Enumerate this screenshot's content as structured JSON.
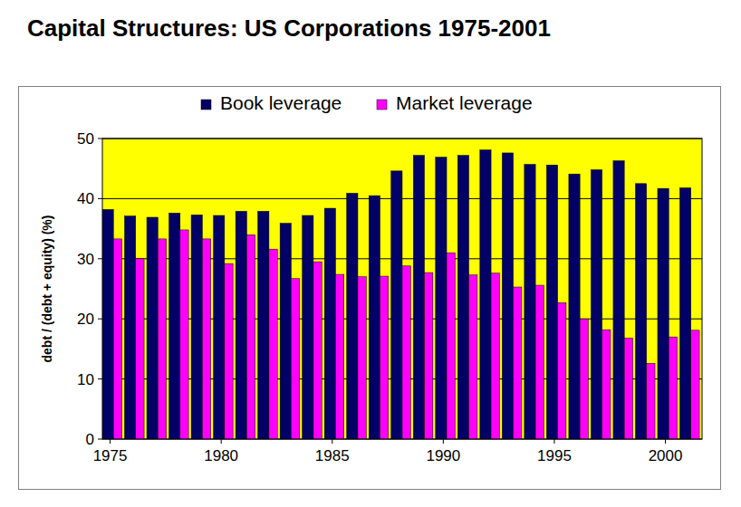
{
  "chart_data": {
    "type": "bar",
    "title": "Capital Structures: US Corporations 1975-2001",
    "y_label": "debt / (debt + equity) (%)",
    "categories": [
      "1975",
      null,
      null,
      null,
      null,
      "1980",
      null,
      null,
      null,
      null,
      "1985",
      null,
      null,
      null,
      null,
      "1990",
      null,
      null,
      null,
      null,
      "1995",
      null,
      null,
      null,
      null,
      "2000",
      null
    ],
    "series": [
      {
        "name": "Book leverage",
        "color": "#000066",
        "values": [
          38.2,
          37.1,
          36.9,
          37.6,
          37.3,
          37.2,
          37.9,
          37.9,
          35.9,
          37.2,
          38.4,
          40.9,
          40.5,
          44.6,
          47.2,
          46.9,
          47.2,
          48.1,
          47.6,
          45.7,
          45.6,
          44.1,
          44.8,
          46.3,
          42.5,
          41.7,
          41.8
        ]
      },
      {
        "name": "Market leverage",
        "color": "#ff00ff",
        "values": [
          33.3,
          30.0,
          33.3,
          34.8,
          33.3,
          29.2,
          34.0,
          31.6,
          26.7,
          29.5,
          27.4,
          27.0,
          27.1,
          28.8,
          27.7,
          31.0,
          27.3,
          27.6,
          25.3,
          25.6,
          22.7,
          20.0,
          18.2,
          16.8,
          12.6,
          17.0,
          18.1
        ]
      }
    ],
    "ylim": [
      0,
      50
    ],
    "yticks": [
      0,
      10,
      20,
      30,
      40,
      50
    ],
    "grid": true,
    "legend": "top"
  }
}
